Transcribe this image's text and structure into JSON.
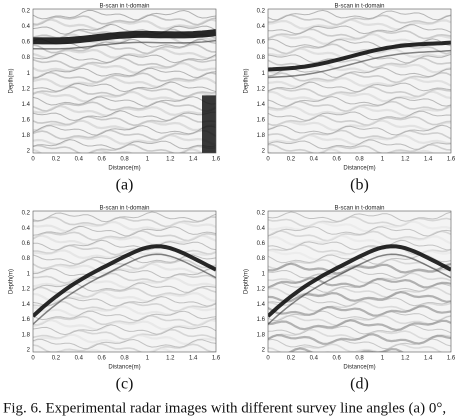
{
  "panels": [
    {
      "title": "B-scan in t-domain",
      "y_label": "Depth(m)",
      "x_label": "Distance(m)",
      "y_ticks": [
        "0.2",
        "0.4",
        "0.6",
        "0.8",
        "1",
        "1.2",
        "1.4",
        "1.6",
        "1.8",
        "2"
      ],
      "x_ticks": [
        "0",
        "0.2",
        "0.4",
        "0.6",
        "0.8",
        "1",
        "1.2",
        "1.4",
        "1.6"
      ],
      "label": "(a)"
    },
    {
      "title": "B-scan in t-domain",
      "y_label": "Depth(m)",
      "x_label": "Distance(m)",
      "y_ticks": [
        "0.2",
        "0.4",
        "0.6",
        "0.8",
        "1",
        "1.2",
        "1.4",
        "1.6",
        "1.8",
        "2"
      ],
      "x_ticks": [
        "0",
        "0.2",
        "0.4",
        "0.6",
        "0.8",
        "1",
        "1.2",
        "1.4",
        "1.6"
      ],
      "label": "(b)"
    },
    {
      "title": "B-scan in t-domain",
      "y_label": "Depth(m)",
      "x_label": "Distance(m)",
      "y_ticks": [
        "0.2",
        "0.4",
        "0.6",
        "0.8",
        "1",
        "1.2",
        "1.4",
        "1.6",
        "1.8",
        "2"
      ],
      "x_ticks": [
        "0",
        "0.2",
        "0.4",
        "0.6",
        "0.8",
        "1",
        "1.2",
        "1.4",
        "1.6"
      ],
      "label": "(c)"
    },
    {
      "title": "B-scan in t-domain",
      "y_label": "Depth(m)",
      "x_label": "Distance(m)",
      "y_ticks": [
        "0.2",
        "0.4",
        "0.6",
        "0.8",
        "1",
        "1.2",
        "1.4",
        "1.6",
        "1.8",
        "2"
      ],
      "x_ticks": [
        "0",
        "0.2",
        "0.4",
        "0.6",
        "0.8",
        "1",
        "1.2",
        "1.4",
        "1.6"
      ],
      "label": "(d)"
    }
  ],
  "caption": "Fig. 6.  Experimental radar images with different survey line angles (a) 0°,"
}
